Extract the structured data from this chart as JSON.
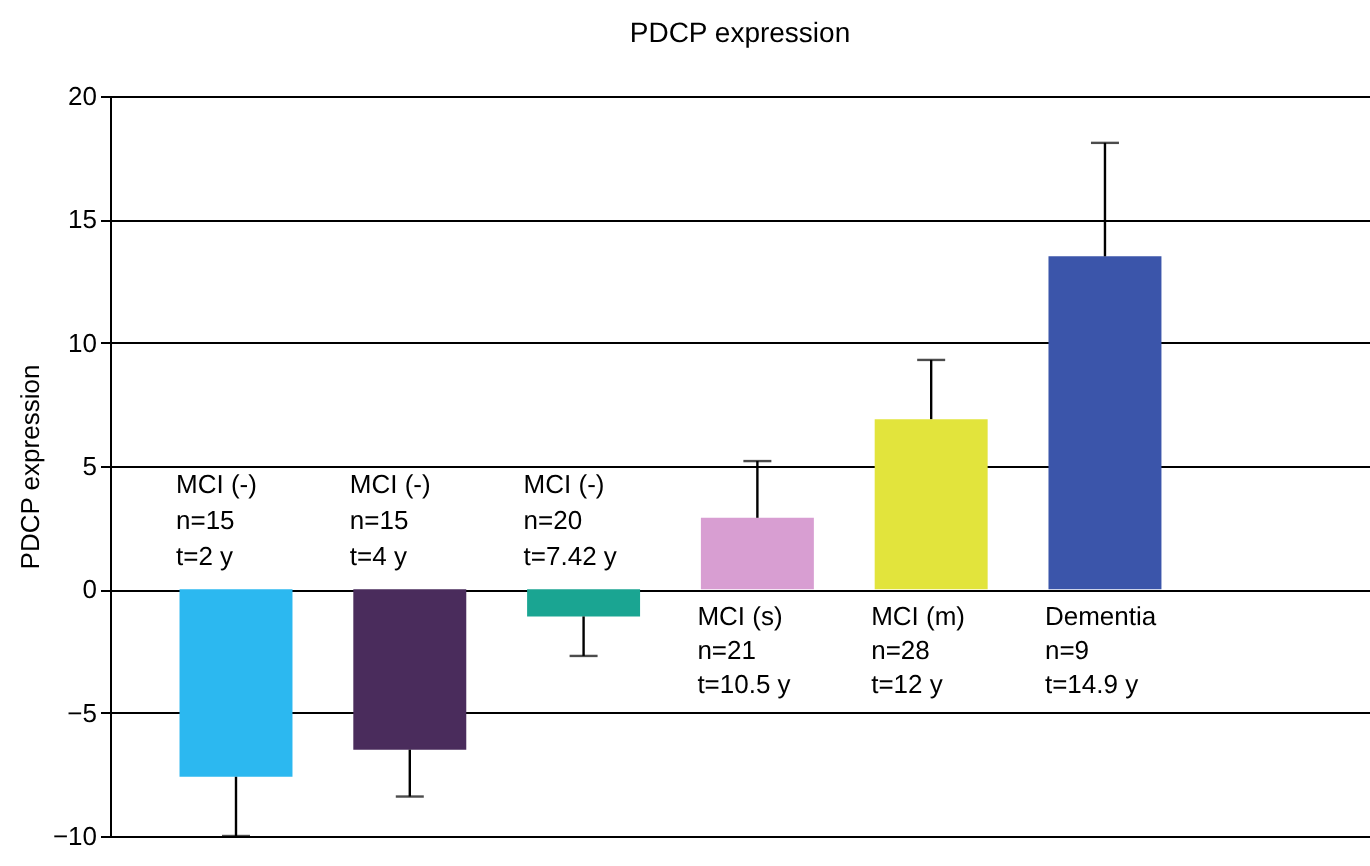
{
  "chart_data": {
    "type": "bar",
    "title": "PDCP expression",
    "ylabel": "PDCP expression",
    "categories": [
      "MCI (-)\nn=15\nt=2 y",
      "MCI (-)\nn=15\nt=4 y",
      "MCI (-)\nn=20\nt=7.42 y",
      "MCI (s)\nn=21\nt=10.5 y",
      "MCI (m)\nn=28\nt=12 y",
      "Dementia\nn=9\nt=14.9 y"
    ],
    "values": [
      -7.6,
      -6.5,
      -1.1,
      2.9,
      6.9,
      13.5
    ],
    "colors": [
      "#2cb8f0",
      "#4a2c5c",
      "#1aa592",
      "#d89ed2",
      "#e2e43c",
      "#3b55aa"
    ],
    "errors": [
      [
        -10,
        -7.6
      ],
      [
        -8.4,
        -6.5
      ],
      [
        -2.7,
        -1.1
      ],
      [
        2.9,
        5.2
      ],
      [
        6.9,
        9.3
      ],
      [
        13.5,
        18.1
      ]
    ],
    "ylim": [
      -10,
      20
    ],
    "yticks": [
      -10,
      -5,
      0,
      5,
      10,
      15,
      20
    ],
    "grid": "y",
    "tick_labels": "y"
  }
}
